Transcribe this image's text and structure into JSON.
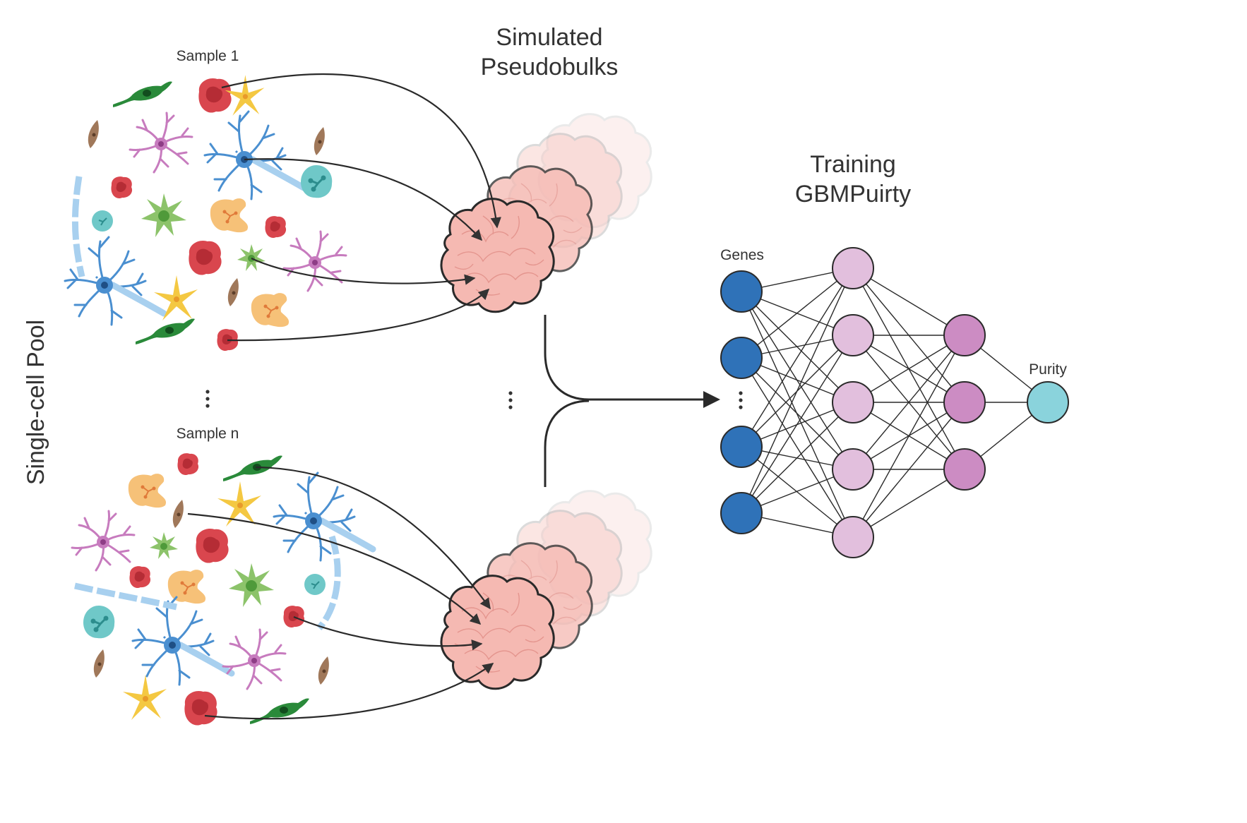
{
  "pool_label": "Single-cell Pool",
  "samples": [
    {
      "label": "Sample 1"
    },
    {
      "label": "Sample n"
    }
  ],
  "pseudobulk_title": [
    "Simulated",
    "Pseudobulks"
  ],
  "training_title": [
    "Training",
    "GBMPuirty"
  ],
  "network": {
    "input_label": "Genes",
    "output_label": "Purity",
    "layers": [
      {
        "role": "input",
        "nodes": 4,
        "ellipsis": true,
        "color": "#2f72b8"
      },
      {
        "role": "hidden",
        "nodes": 5,
        "color": "#e2bfdd"
      },
      {
        "role": "hidden",
        "nodes": 3,
        "color": "#cc8cc3"
      },
      {
        "role": "output",
        "nodes": 1,
        "color": "#8ad3dc"
      }
    ]
  },
  "colors": {
    "tumor_red": "#d9464e",
    "oligo_green": "#2a8a3a",
    "astro_pink": "#c77bbe",
    "neuron_blue": "#4a8fd0",
    "microglia_green": "#8cc36a",
    "macrophage_orange": "#f6c178",
    "tcell_yellow": "#f4c842",
    "endo_brown": "#a0785a",
    "monocyte_teal": "#6fc8c8",
    "pseudobulk_pink": "#f5b9b2"
  }
}
